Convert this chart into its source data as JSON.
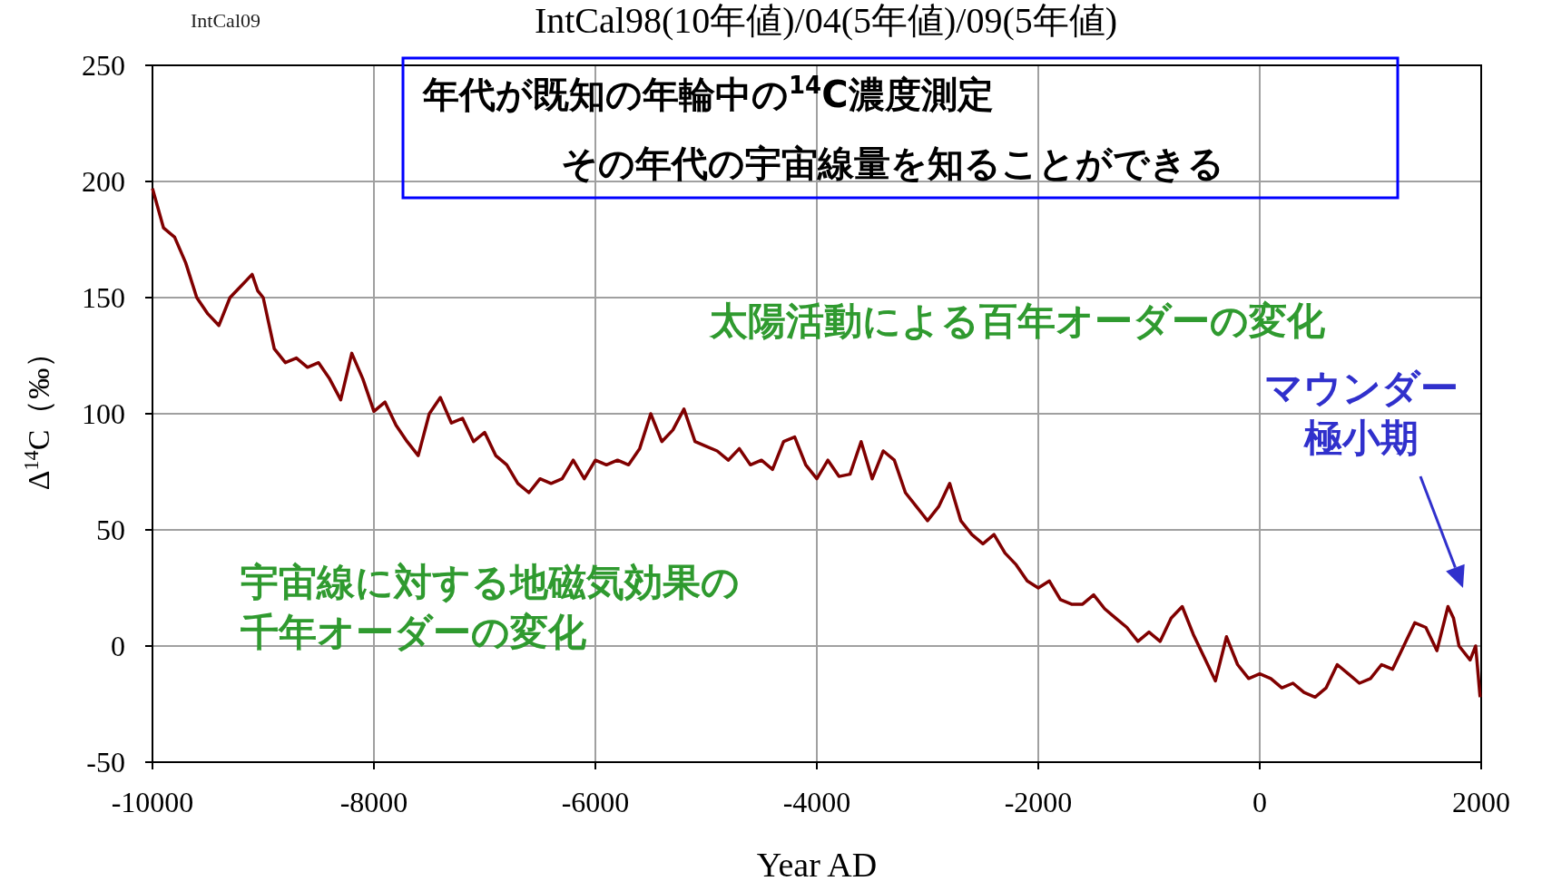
{
  "chart_data": {
    "type": "line",
    "title": "IntCal98(10年値)/04(5年値)/09(5年値)",
    "xlabel": "Year AD",
    "ylabel": "Δ$^{14}$C（‰）",
    "annotations": [
      "IntCal09",
      "年代が既知の年輪中の$^{14}$C濃度測定",
      "その年代の宇宙線量を知ることができる",
      "太陽活動による百年オーダーの変化",
      "宇宙線に対する地磁気効果の千年オーダーの変化",
      "マウンダー極小期"
    ],
    "xlim": [
      -10000,
      2000
    ],
    "ylim": [
      -50,
      250
    ],
    "xticks": [
      -10000,
      -8000,
      -6000,
      -4000,
      -2000,
      0,
      2000
    ],
    "yticks": [
      -50,
      0,
      50,
      100,
      150,
      200,
      250
    ],
    "grid": true,
    "marker": "none",
    "line_style": "solid",
    "series": [
      {
        "color": "#800000",
        "x": [
          -10000,
          -9900,
          -9800,
          -9700,
          -9600,
          -9500,
          -9400,
          -9300,
          -9200,
          -9100,
          -9050,
          -9000,
          -8900,
          -8800,
          -8700,
          -8600,
          -8500,
          -8400,
          -8300,
          -8200,
          -8100,
          -8000,
          -7900,
          -7800,
          -7700,
          -7600,
          -7500,
          -7400,
          -7300,
          -7200,
          -7100,
          -7000,
          -6900,
          -6800,
          -6700,
          -6600,
          -6500,
          -6400,
          -6300,
          -6200,
          -6100,
          -6000,
          -5900,
          -5800,
          -5700,
          -5600,
          -5500,
          -5400,
          -5300,
          -5200,
          -5100,
          -5000,
          -4900,
          -4800,
          -4700,
          -4600,
          -4500,
          -4400,
          -4300,
          -4200,
          -4100,
          -4000,
          -3900,
          -3800,
          -3700,
          -3600,
          -3500,
          -3400,
          -3300,
          -3200,
          -3100,
          -3000,
          -2900,
          -2800,
          -2700,
          -2600,
          -2500,
          -2400,
          -2300,
          -2200,
          -2100,
          -2000,
          -1900,
          -1800,
          -1700,
          -1600,
          -1500,
          -1400,
          -1300,
          -1200,
          -1100,
          -1000,
          -900,
          -800,
          -700,
          -600,
          -500,
          -400,
          -300,
          -200,
          -100,
          0,
          100,
          200,
          300,
          400,
          500,
          600,
          700,
          800,
          900,
          1000,
          1100,
          1200,
          1300,
          1400,
          1500,
          1600,
          1700,
          1750,
          1800,
          1900,
          1950,
          1990
        ],
        "values": [
          197,
          180,
          176,
          165,
          150,
          143,
          138,
          150,
          155,
          160,
          153,
          150,
          128,
          122,
          124,
          120,
          122,
          115,
          106,
          126,
          115,
          101,
          105,
          95,
          88,
          82,
          100,
          107,
          96,
          98,
          88,
          92,
          82,
          78,
          70,
          66,
          72,
          70,
          72,
          80,
          72,
          80,
          78,
          80,
          78,
          85,
          100,
          88,
          93,
          102,
          88,
          86,
          84,
          80,
          85,
          78,
          80,
          76,
          88,
          90,
          78,
          72,
          80,
          73,
          74,
          88,
          72,
          84,
          80,
          66,
          60,
          54,
          60,
          70,
          54,
          48,
          44,
          48,
          40,
          35,
          28,
          25,
          28,
          20,
          18,
          18,
          22,
          16,
          12,
          8,
          2,
          6,
          2,
          12,
          17,
          5,
          -5,
          -15,
          4,
          -8,
          -14,
          -12,
          -14,
          -18,
          -16,
          -20,
          -22,
          -18,
          -8,
          -12,
          -16,
          -14,
          -8,
          -10,
          0,
          10,
          8,
          -2,
          17,
          12,
          0,
          -6,
          0,
          -22
        ]
      }
    ]
  }
}
